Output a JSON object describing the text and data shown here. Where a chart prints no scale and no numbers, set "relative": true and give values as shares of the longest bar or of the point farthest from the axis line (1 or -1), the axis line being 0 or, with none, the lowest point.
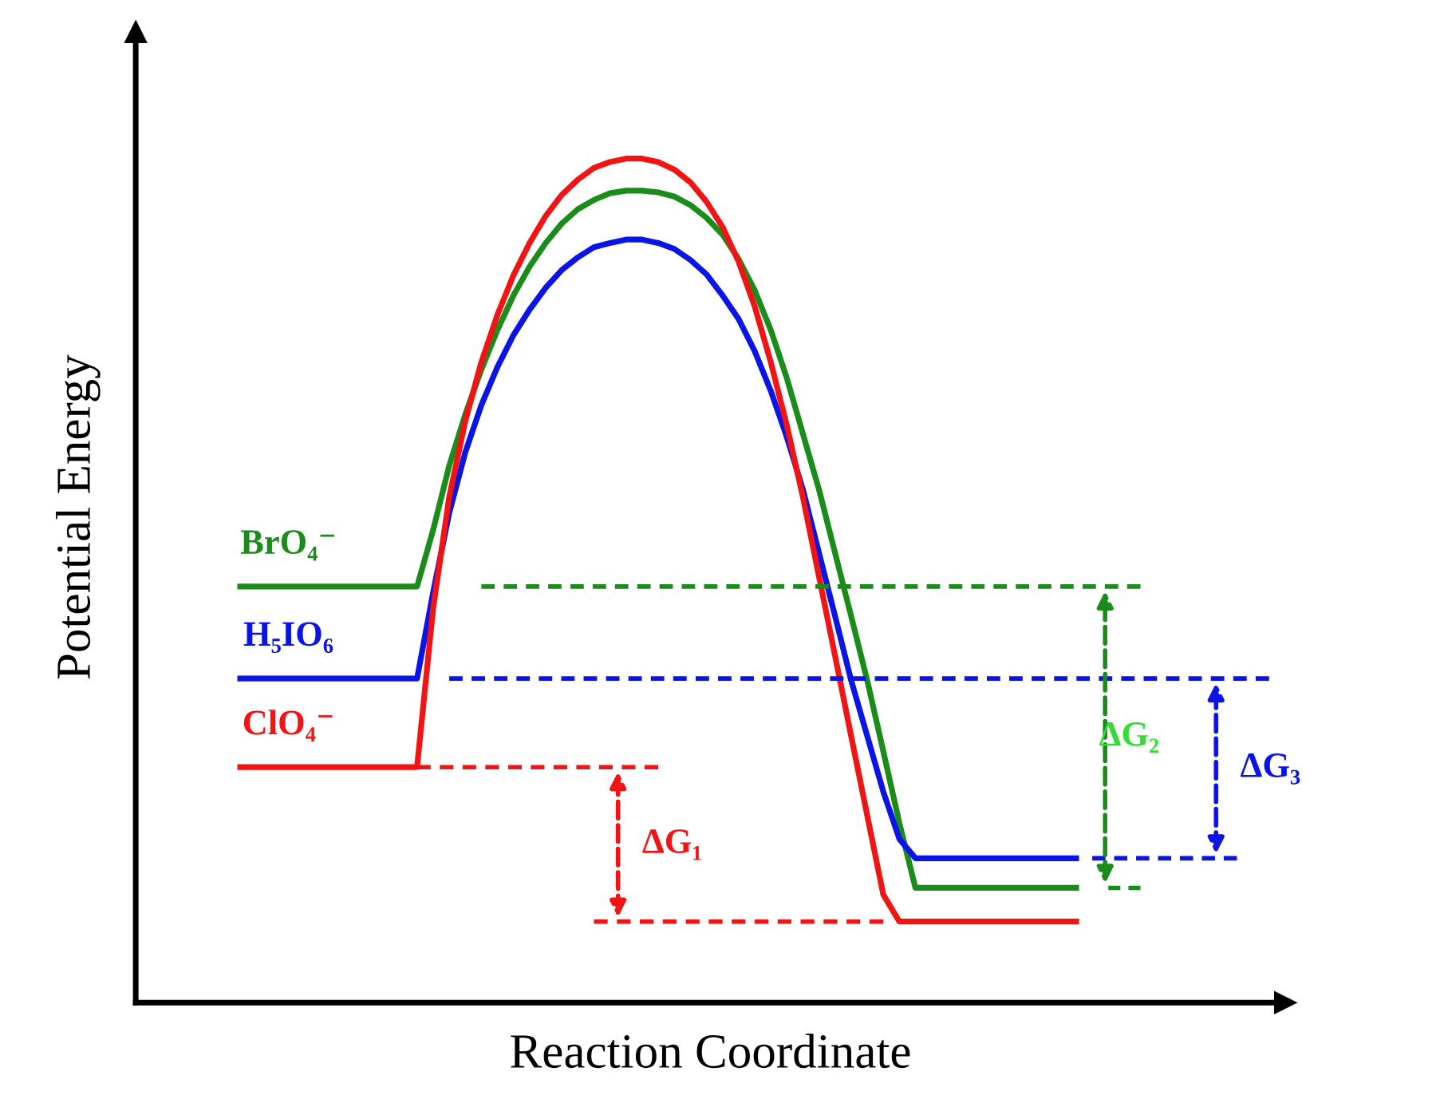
{
  "chart_data": {
    "type": "line",
    "relative": true,
    "xlabel": "Reaction Coordinate",
    "ylabel": "Potential Energy",
    "legend": false,
    "categories": [
      null,
      null,
      null,
      null,
      null,
      null,
      null,
      null,
      null,
      null,
      null,
      null,
      null,
      null,
      null,
      null,
      null,
      null,
      null,
      null,
      null,
      null,
      null,
      null,
      null,
      null,
      null,
      null,
      null,
      null,
      null,
      null,
      null,
      null,
      null,
      null,
      null,
      null,
      null,
      null,
      null,
      null,
      null,
      null,
      null,
      null,
      null,
      null,
      null,
      null,
      null,
      null,
      null,
      null,
      null,
      null,
      null,
      null,
      null,
      null,
      null,
      null,
      null,
      null,
      null
    ],
    "series": [
      {
        "name": "BrO₄⁻",
        "color": "#1a8c1a",
        "values": [
          0.493,
          0.493,
          0.493,
          0.493,
          0.493,
          0.493,
          0.493,
          0.493,
          0.493,
          0.493,
          0.493,
          0.493,
          0.56,
          0.636,
          0.697,
          0.75,
          0.797,
          0.838,
          0.872,
          0.9,
          0.923,
          0.94,
          0.951,
          0.959,
          0.962,
          0.962,
          0.96,
          0.955,
          0.945,
          0.93,
          0.91,
          0.881,
          0.844,
          0.797,
          0.74,
          0.674,
          0.608,
          0.533,
          0.458,
          0.382,
          0.298,
          0.213,
          0.136,
          0.136,
          0.136,
          0.136,
          0.136,
          0.136,
          0.136,
          0.136,
          0.136,
          0.136,
          0.136,
          null,
          null,
          null,
          null,
          null,
          null,
          null,
          null,
          null,
          null,
          null,
          null
        ]
      },
      {
        "name": "H₅IO₆",
        "color": "#0a14e6",
        "values": [
          0.384,
          0.384,
          0.384,
          0.384,
          0.384,
          0.384,
          0.384,
          0.384,
          0.384,
          0.384,
          0.384,
          0.384,
          0.486,
          0.58,
          0.652,
          0.708,
          0.753,
          0.791,
          0.821,
          0.847,
          0.868,
          0.883,
          0.895,
          0.9,
          0.904,
          0.904,
          0.9,
          0.893,
          0.88,
          0.863,
          0.838,
          0.81,
          0.772,
          0.725,
          0.67,
          0.608,
          0.533,
          0.458,
          0.382,
          0.316,
          0.25,
          0.194,
          0.171,
          0.171,
          0.171,
          0.171,
          0.171,
          0.171,
          0.171,
          0.171,
          0.171,
          0.171,
          0.171,
          null,
          null,
          null,
          null,
          null,
          null,
          null,
          null,
          null,
          null,
          null,
          null
        ]
      },
      {
        "name": "ClO₄⁻",
        "color": "#f01414",
        "values": [
          0.279,
          0.279,
          0.279,
          0.279,
          0.279,
          0.279,
          0.279,
          0.279,
          0.279,
          0.279,
          0.279,
          0.279,
          0.467,
          0.599,
          0.689,
          0.759,
          0.815,
          0.862,
          0.9,
          0.932,
          0.957,
          0.975,
          0.989,
          0.996,
          1.0,
          1.0,
          0.996,
          0.987,
          0.972,
          0.949,
          0.919,
          0.878,
          0.825,
          0.759,
          0.684,
          0.599,
          0.505,
          0.411,
          0.316,
          0.222,
          0.128,
          0.096,
          0.096,
          0.096,
          0.096,
          0.096,
          0.096,
          0.096,
          0.096,
          0.096,
          0.096,
          0.096,
          0.096,
          null,
          null,
          null,
          null,
          null,
          null,
          null,
          null,
          null,
          null,
          null,
          null
        ]
      },
      {
        "color": "#1a8c1a",
        "line_style": "dashed",
        "values": [
          null,
          null,
          null,
          null,
          null,
          null,
          null,
          null,
          null,
          null,
          null,
          null,
          null,
          null,
          null,
          0.493,
          0.493,
          0.493,
          0.493,
          0.493,
          0.493,
          0.493,
          0.493,
          0.493,
          0.493,
          0.493,
          0.493,
          0.493,
          0.493,
          0.493,
          0.493,
          0.493,
          0.493,
          0.493,
          0.493,
          0.493,
          0.493,
          0.493,
          0.493,
          0.493,
          0.493,
          0.493,
          0.493,
          0.493,
          0.493,
          0.493,
          0.493,
          0.493,
          0.493,
          0.493,
          0.493,
          0.493,
          0.493,
          0.493,
          0.493,
          0.493,
          0.493,
          null,
          null,
          null,
          null,
          null,
          null,
          null,
          null
        ]
      },
      {
        "color": "#1a8c1a",
        "line_style": "dashed",
        "values": [
          null,
          null,
          null,
          null,
          null,
          null,
          null,
          null,
          null,
          null,
          null,
          null,
          null,
          null,
          null,
          null,
          null,
          null,
          null,
          null,
          null,
          null,
          null,
          null,
          null,
          null,
          null,
          null,
          null,
          null,
          null,
          null,
          null,
          null,
          null,
          null,
          null,
          null,
          null,
          null,
          null,
          null,
          null,
          null,
          null,
          null,
          null,
          null,
          null,
          null,
          null,
          null,
          null,
          null,
          0.136,
          0.136,
          0.136,
          null,
          null,
          null,
          null,
          null,
          null,
          null,
          null
        ]
      },
      {
        "color": "#0a14e6",
        "line_style": "dashed",
        "values": [
          null,
          null,
          null,
          null,
          null,
          null,
          null,
          null,
          null,
          null,
          null,
          null,
          null,
          0.384,
          0.384,
          0.384,
          0.384,
          0.384,
          0.384,
          0.384,
          0.384,
          0.384,
          0.384,
          0.384,
          0.384,
          0.384,
          0.384,
          0.384,
          0.384,
          0.384,
          0.384,
          0.384,
          0.384,
          0.384,
          0.384,
          0.384,
          0.384,
          0.384,
          0.384,
          0.384,
          0.384,
          0.384,
          0.384,
          0.384,
          0.384,
          0.384,
          0.384,
          0.384,
          0.384,
          0.384,
          0.384,
          0.384,
          0.384,
          0.384,
          0.384,
          0.384,
          0.384,
          0.384,
          0.384,
          0.384,
          0.384,
          0.384,
          0.384,
          0.384,
          0.384
        ]
      },
      {
        "color": "#0a14e6",
        "line_style": "dashed",
        "values": [
          null,
          null,
          null,
          null,
          null,
          null,
          null,
          null,
          null,
          null,
          null,
          null,
          null,
          null,
          null,
          null,
          null,
          null,
          null,
          null,
          null,
          null,
          null,
          null,
          null,
          null,
          null,
          null,
          null,
          null,
          null,
          null,
          null,
          null,
          null,
          null,
          null,
          null,
          null,
          null,
          null,
          null,
          null,
          null,
          null,
          null,
          null,
          null,
          null,
          null,
          null,
          null,
          null,
          0.171,
          0.171,
          0.171,
          0.171,
          0.171,
          0.171,
          0.171,
          0.171,
          0.171,
          0.171,
          null,
          null
        ]
      },
      {
        "color": "#f01414",
        "line_style": "dashed",
        "values": [
          null,
          null,
          null,
          null,
          null,
          null,
          null,
          null,
          null,
          null,
          null,
          0.279,
          0.279,
          0.279,
          0.279,
          0.279,
          0.279,
          0.279,
          0.279,
          0.279,
          0.279,
          0.279,
          0.279,
          0.279,
          0.279,
          0.279,
          0.279,
          null,
          null,
          null,
          null,
          null,
          null,
          null,
          null,
          null,
          null,
          null,
          null,
          null,
          null,
          null,
          null,
          null,
          null,
          null,
          null,
          null,
          null,
          null,
          null,
          null,
          null,
          null,
          null,
          null,
          null,
          null,
          null,
          null,
          null,
          null,
          null,
          null,
          null
        ]
      },
      {
        "color": "#f01414",
        "line_style": "dashed",
        "values": [
          null,
          null,
          null,
          null,
          null,
          null,
          null,
          null,
          null,
          null,
          null,
          null,
          null,
          null,
          null,
          null,
          null,
          null,
          null,
          null,
          null,
          null,
          0.096,
          0.096,
          0.096,
          0.096,
          0.096,
          0.096,
          0.096,
          0.096,
          0.096,
          0.096,
          0.096,
          0.096,
          0.096,
          0.096,
          0.096,
          0.096,
          0.096,
          0.096,
          0.096,
          null,
          null,
          null,
          null,
          null,
          null,
          null,
          null,
          null,
          null,
          null,
          null,
          null,
          null,
          null,
          null,
          null,
          null,
          null,
          null,
          null,
          null,
          null,
          null
        ]
      }
    ],
    "annotations": [
      "ΔG₁",
      "ΔG₂",
      "ΔG₃"
    ]
  }
}
